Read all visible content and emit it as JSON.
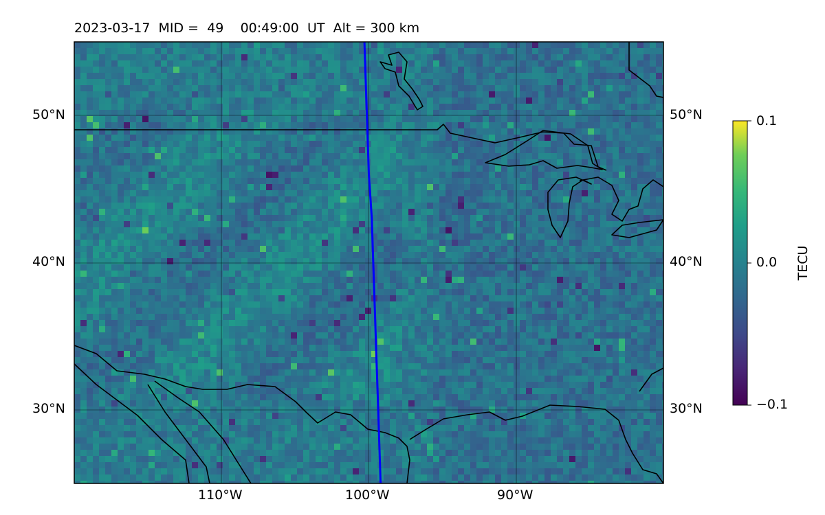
{
  "title": {
    "date": "2023-03-17",
    "mid_label": "MID =",
    "mid_value": "49",
    "time": "00:49:00",
    "time_zone": "UT",
    "alt_label": "Alt = 300 km"
  },
  "map": {
    "extent": {
      "lon": [
        -120,
        -80
      ],
      "lat": [
        25,
        55
      ]
    },
    "gridlines": {
      "lon": [
        -110,
        -100,
        -90
      ],
      "lat": [
        30,
        40,
        50
      ]
    },
    "lat_ticks": [
      "30°N",
      "40°N",
      "50°N"
    ],
    "lon_ticks": [
      "110°W",
      "100°W",
      "90°W"
    ],
    "colormap": "viridis",
    "features": [
      "coastlines",
      "country-borders",
      "great-lakes"
    ],
    "terminator_color": "#0000ff",
    "terminator_line": [
      {
        "lon": -100.3,
        "lat": 55.0
      },
      {
        "lon": -100.2,
        "lat": 52.0
      },
      {
        "lon": -100.1,
        "lat": 49.0
      },
      {
        "lon": -100.0,
        "lat": 46.0
      },
      {
        "lon": -99.8,
        "lat": 43.0
      },
      {
        "lon": -99.7,
        "lat": 40.0
      },
      {
        "lon": -99.6,
        "lat": 37.0
      },
      {
        "lon": -99.5,
        "lat": 34.0
      },
      {
        "lon": -99.4,
        "lat": 31.0
      },
      {
        "lon": -99.3,
        "lat": 28.0
      },
      {
        "lon": -99.2,
        "lat": 25.0
      }
    ]
  },
  "colorbar": {
    "label": "TECU",
    "min": -0.1,
    "max": 0.1,
    "ticks": [
      "0.1",
      "0.0",
      "−0.1"
    ],
    "tick_values": [
      0.1,
      0.0,
      -0.1
    ]
  }
}
